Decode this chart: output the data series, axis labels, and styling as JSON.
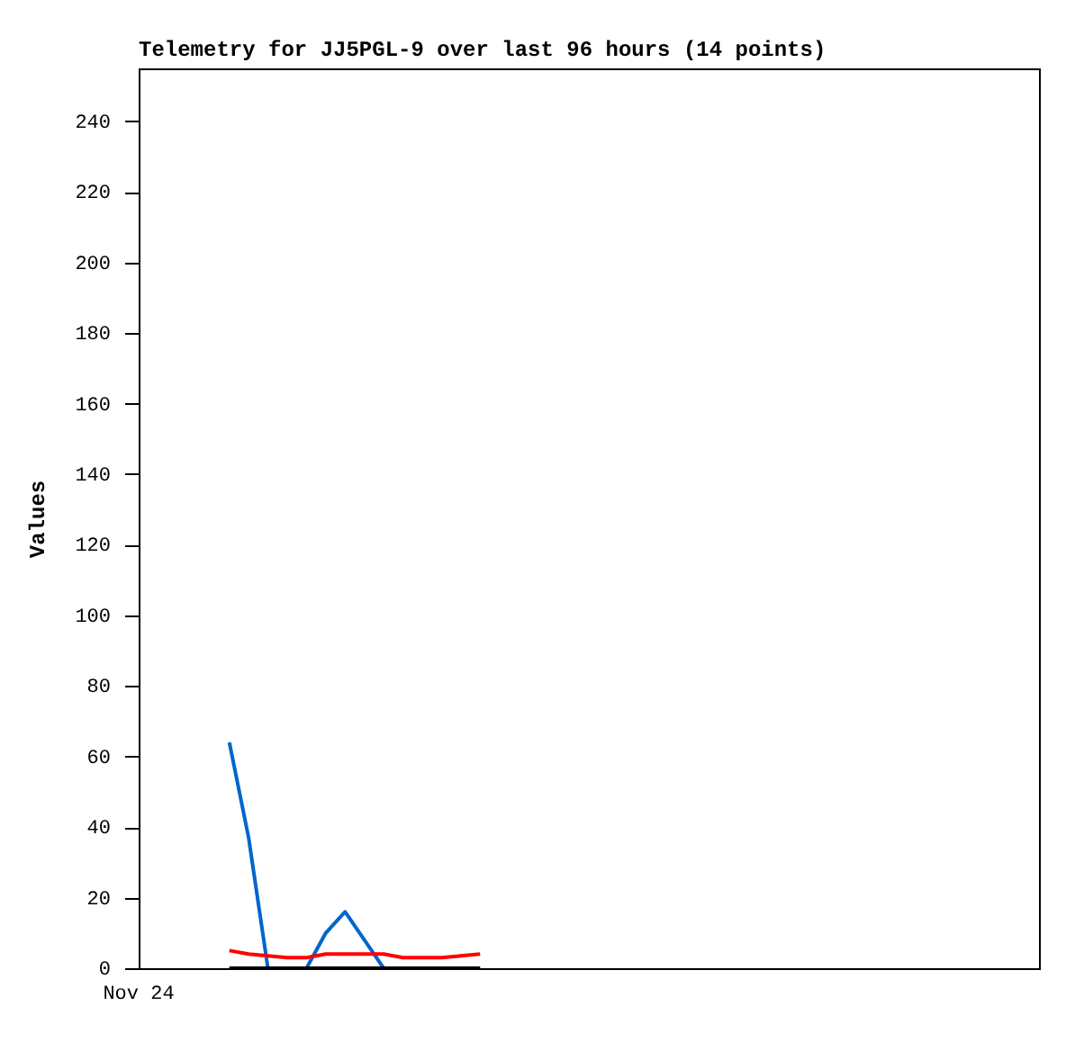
{
  "chart_data": {
    "type": "line",
    "title": "Telemetry for JJ5PGL-9 over last 96 hours (14 points)",
    "ylabel": "Values",
    "categories": [
      null,
      null,
      null,
      null,
      null,
      null,
      null,
      null,
      null,
      null,
      null,
      null,
      null,
      null
    ],
    "annotations": [
      "Nov 24"
    ],
    "ylim": [
      0,
      255
    ],
    "yticks": [
      0,
      20,
      40,
      60,
      80,
      100,
      120,
      140,
      160,
      180,
      200,
      220,
      240
    ],
    "series": [
      {
        "color": "#0066cc",
        "values": [
          64,
          37,
          0,
          0,
          0,
          10,
          16,
          8,
          0,
          0,
          null,
          null,
          null,
          null
        ]
      },
      {
        "color": "#ff0000",
        "values": [
          5,
          4,
          3.5,
          3,
          3,
          4,
          4,
          4,
          4,
          3,
          3,
          3,
          3.5,
          4
        ]
      },
      {
        "color": "#000000",
        "values": [
          0,
          0,
          0,
          0,
          0,
          0,
          0,
          0,
          0,
          0,
          0,
          0,
          0,
          0
        ]
      }
    ],
    "grid": false,
    "marker": "none",
    "line_style": "solid"
  }
}
